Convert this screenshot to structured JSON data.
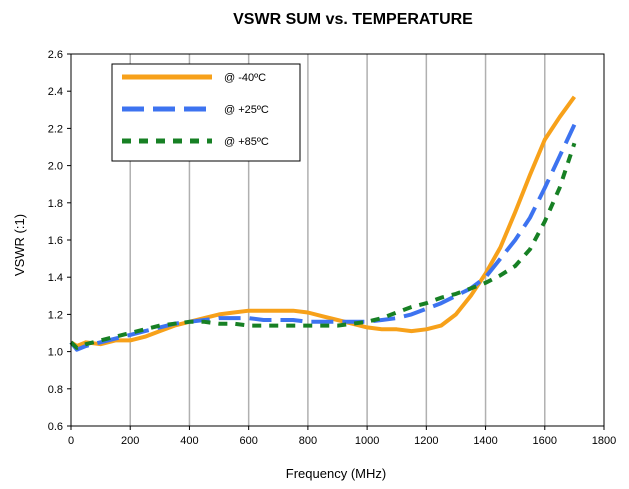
{
  "chart_data": {
    "type": "line",
    "title": "VSWR SUM vs. TEMPERATURE",
    "xlabel": "Frequency (MHz)",
    "ylabel": "VSWR (:1)",
    "xlim": [
      0,
      1800
    ],
    "ylim": [
      0.6,
      2.6
    ],
    "xticks": [
      0,
      200,
      400,
      600,
      800,
      1000,
      1200,
      1400,
      1600,
      1800
    ],
    "yticks": [
      0.6,
      0.8,
      1.0,
      1.2,
      1.4,
      1.6,
      1.8,
      2.0,
      2.2,
      2.4,
      2.6
    ],
    "ytick_labels": [
      "0.6",
      "0.8",
      "1.0",
      "1.2",
      "1.4",
      "1.6",
      "1.8",
      "2.0",
      "2.2",
      "2.4",
      "2.6"
    ],
    "grid": "vertical",
    "legend_position": "top-left",
    "series": [
      {
        "name": "@ -40ºC",
        "color": "#f7a11a",
        "style": "solid",
        "x": [
          0,
          20,
          50,
          100,
          150,
          200,
          250,
          300,
          350,
          400,
          450,
          500,
          550,
          600,
          650,
          700,
          750,
          800,
          850,
          900,
          950,
          1000,
          1050,
          1100,
          1150,
          1200,
          1250,
          1300,
          1350,
          1400,
          1450,
          1500,
          1550,
          1600,
          1650,
          1700
        ],
        "y": [
          1.05,
          1.03,
          1.05,
          1.04,
          1.06,
          1.06,
          1.08,
          1.11,
          1.14,
          1.16,
          1.18,
          1.2,
          1.21,
          1.22,
          1.22,
          1.22,
          1.22,
          1.21,
          1.19,
          1.17,
          1.15,
          1.13,
          1.12,
          1.12,
          1.11,
          1.12,
          1.14,
          1.2,
          1.3,
          1.42,
          1.56,
          1.75,
          1.95,
          2.14,
          2.26,
          2.37
        ]
      },
      {
        "name": "@ +25ºC",
        "color": "#3d73f0",
        "style": "dashed",
        "x": [
          0,
          20,
          50,
          100,
          150,
          200,
          250,
          300,
          350,
          400,
          450,
          500,
          550,
          600,
          650,
          700,
          750,
          800,
          850,
          900,
          950,
          1000,
          1050,
          1100,
          1150,
          1200,
          1250,
          1300,
          1350,
          1400,
          1450,
          1500,
          1550,
          1600,
          1650,
          1700
        ],
        "y": [
          1.05,
          1.01,
          1.03,
          1.05,
          1.07,
          1.09,
          1.11,
          1.13,
          1.15,
          1.16,
          1.17,
          1.18,
          1.18,
          1.18,
          1.17,
          1.17,
          1.17,
          1.16,
          1.16,
          1.16,
          1.16,
          1.16,
          1.17,
          1.18,
          1.2,
          1.23,
          1.26,
          1.3,
          1.34,
          1.4,
          1.5,
          1.6,
          1.72,
          1.88,
          2.05,
          2.22
        ]
      },
      {
        "name": "@ +85ºC",
        "color": "#178024",
        "style": "dotted",
        "x": [
          0,
          20,
          50,
          100,
          150,
          200,
          250,
          300,
          350,
          400,
          450,
          500,
          550,
          600,
          650,
          700,
          750,
          800,
          850,
          900,
          950,
          1000,
          1050,
          1100,
          1150,
          1200,
          1250,
          1300,
          1350,
          1400,
          1450,
          1500,
          1550,
          1600,
          1650,
          1700
        ],
        "y": [
          1.05,
          1.02,
          1.04,
          1.06,
          1.08,
          1.1,
          1.12,
          1.14,
          1.15,
          1.16,
          1.16,
          1.15,
          1.15,
          1.14,
          1.14,
          1.14,
          1.14,
          1.14,
          1.14,
          1.14,
          1.15,
          1.16,
          1.18,
          1.21,
          1.24,
          1.26,
          1.29,
          1.31,
          1.34,
          1.37,
          1.41,
          1.46,
          1.55,
          1.7,
          1.88,
          2.12
        ]
      }
    ]
  }
}
